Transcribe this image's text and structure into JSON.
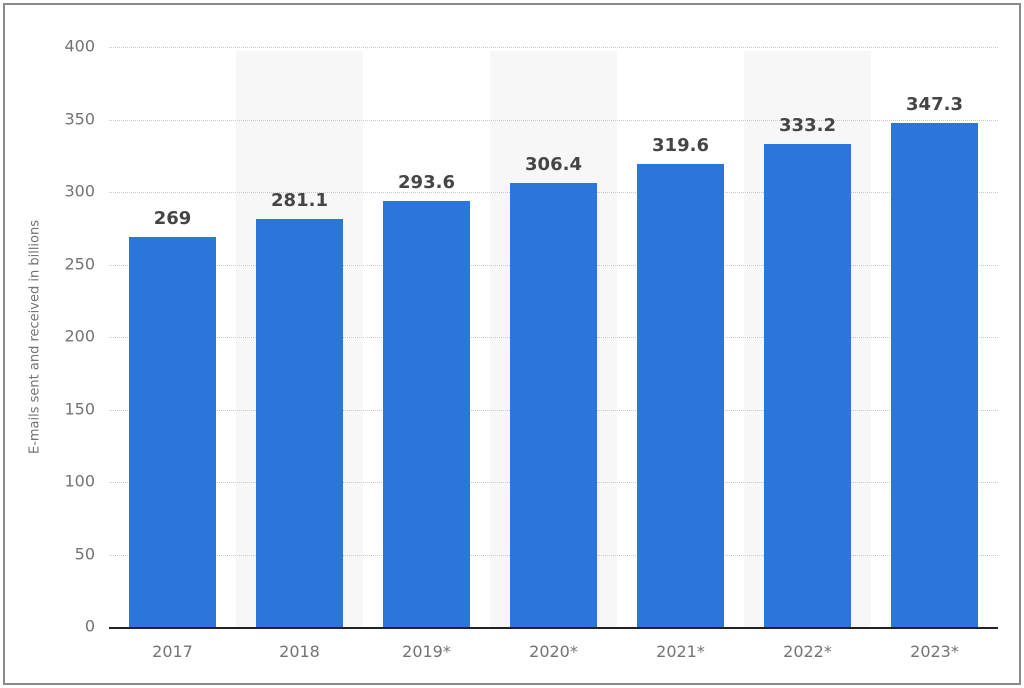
{
  "chart_data": {
    "type": "bar",
    "categories": [
      "2017",
      "2018",
      "2019*",
      "2020*",
      "2021*",
      "2022*",
      "2023*"
    ],
    "values": [
      269,
      281.1,
      293.6,
      306.4,
      319.6,
      333.2,
      347.3
    ],
    "value_labels": [
      "269",
      "281.1",
      "293.6",
      "306.4",
      "319.6",
      "333.2",
      "347.3"
    ],
    "title": "",
    "xlabel": "",
    "ylabel": "E-mails sent and received in billions",
    "ylim": [
      0,
      400
    ],
    "yticks": [
      0,
      50,
      100,
      150,
      200,
      250,
      300,
      350,
      400
    ],
    "grid": "horizontal dotted",
    "legend": "none",
    "band_columns": [
      1,
      3,
      5
    ],
    "colors": {
      "bar": "#2b75db",
      "column_band": "#f7f7f7",
      "gridline": "#c9c9c9",
      "baseline": "#222222",
      "tick_text": "#737373",
      "value_text": "#454545",
      "frame_border": "#8a8a8a",
      "background": "#ffffff"
    }
  }
}
